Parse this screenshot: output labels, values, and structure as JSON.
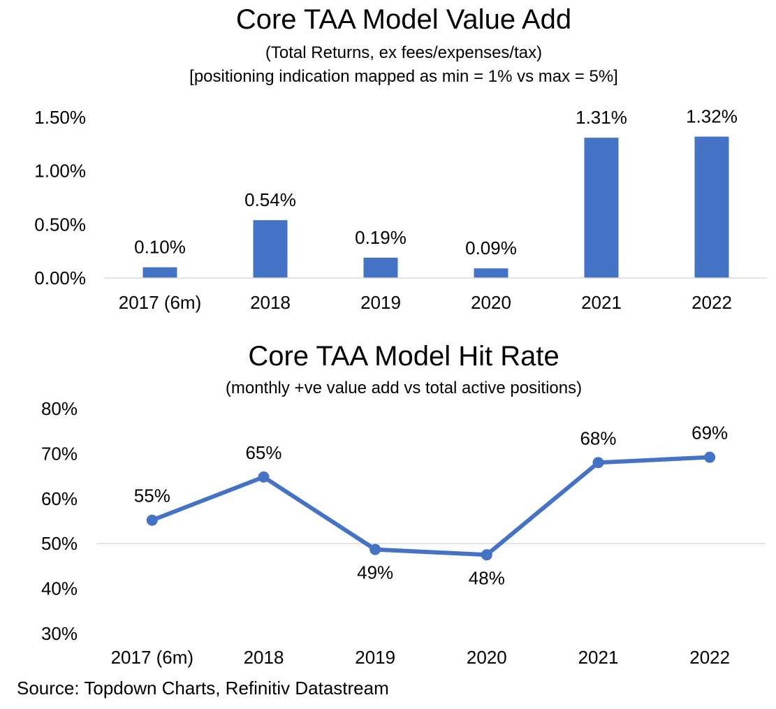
{
  "chart_data": [
    {
      "type": "bar",
      "title": "Core TAA Model Value Add",
      "subtitle_lines": [
        "(Total Returns, ex fees/expenses/tax)",
        "[positioning indication mapped as min = 1% vs max = 5%]"
      ],
      "categories": [
        "2017 (6m)",
        "2018",
        "2019",
        "2020",
        "2021",
        "2022"
      ],
      "values": [
        0.1,
        0.54,
        0.19,
        0.09,
        1.31,
        1.32
      ],
      "data_labels": [
        "0.10%",
        "0.54%",
        "0.19%",
        "0.09%",
        "1.31%",
        "1.32%"
      ],
      "y_ticks": [
        {
          "value": 0.0,
          "label": "0.00%"
        },
        {
          "value": 0.5,
          "label": "0.50%"
        },
        {
          "value": 1.0,
          "label": "1.00%"
        },
        {
          "value": 1.5,
          "label": "1.50%"
        }
      ],
      "ylim": [
        0,
        1.5
      ],
      "grid": false,
      "color": "#4472C4"
    },
    {
      "type": "line",
      "title": "Core TAA Model Hit Rate",
      "subtitle_lines": [
        "(monthly +ve value add vs total active positions)"
      ],
      "categories": [
        "2017 (6m)",
        "2018",
        "2019",
        "2020",
        "2021",
        "2022"
      ],
      "values": [
        55.2,
        64.8,
        48.7,
        47.5,
        68.0,
        69.2
      ],
      "data_labels": [
        "55%",
        "65%",
        "49%",
        "48%",
        "68%",
        "69%"
      ],
      "label_positions": [
        "above",
        "above",
        "below",
        "below",
        "above",
        "above"
      ],
      "y_ticks": [
        {
          "value": 30,
          "label": "30%"
        },
        {
          "value": 40,
          "label": "40%"
        },
        {
          "value": 50,
          "label": "50%"
        },
        {
          "value": 60,
          "label": "60%"
        },
        {
          "value": 70,
          "label": "70%"
        },
        {
          "value": 80,
          "label": "80%"
        }
      ],
      "ylim": [
        30,
        80
      ],
      "baseline": 50,
      "grid": false,
      "color": "#4472C4"
    }
  ],
  "source": "Source: Topdown Charts, Refinitiv Datastream"
}
